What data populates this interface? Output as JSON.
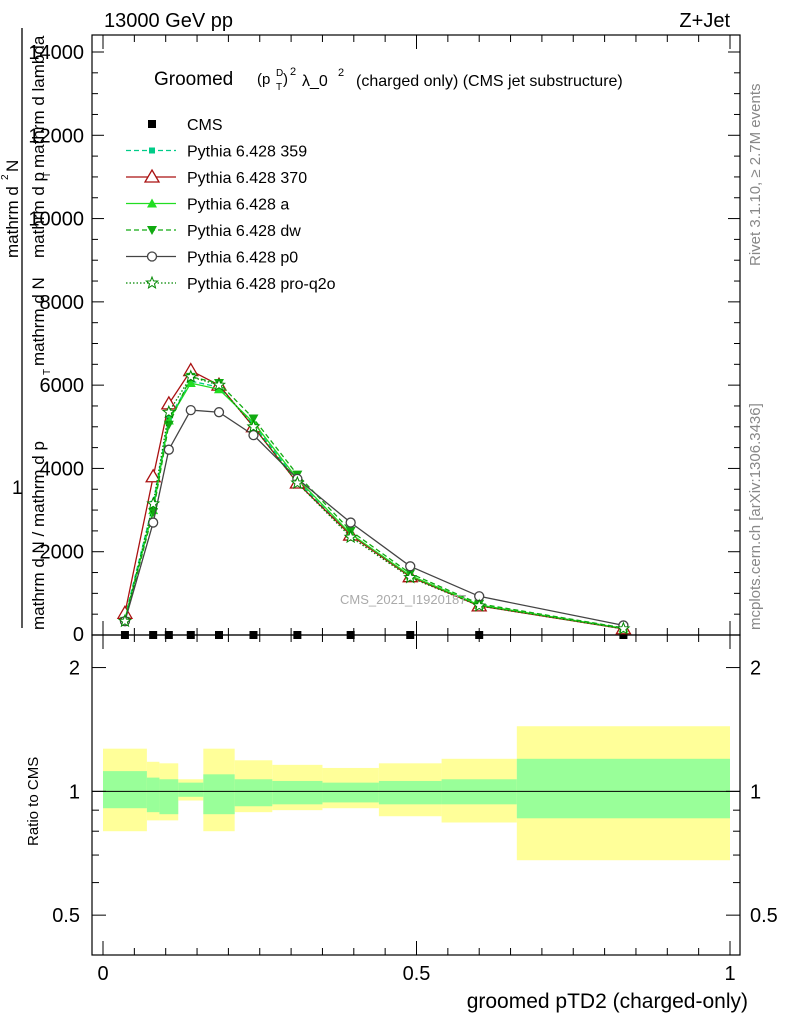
{
  "header": {
    "left": "13000 GeV pp",
    "right": "Z+Jet"
  },
  "side_text": {
    "rivet": "Rivet 3.1.10, ≥ 2.7M events",
    "mcplots": "mcplots.cern.ch [arXiv:1306.3436]"
  },
  "main_title": {
    "prefix": "Groomed",
    "p": "(p",
    "sup_d": "D",
    "sub_t": "T",
    "close": ")",
    "sq1": "2",
    "lam": "λ_0",
    "sq2": "2",
    "suffix": "(charged only) (CMS jet substructure)"
  },
  "watermark": "CMS_2021_I1920187",
  "ylabel_main": {
    "one": "1",
    "top_line1": "mathrm d",
    "top_sup": "2",
    "top_N": "N",
    "top_line2": "mathrm d p",
    "top_sub": "T",
    "top_rest": "mathrm d lambda",
    "bottom_a": "mathrm d N / mathrm d p",
    "bottom_sub": "T",
    "bottom_b": "mathrm d N"
  },
  "ylabel_ratio": "Ratio to CMS",
  "xlabel": "groomed pTD2 (charged-only)",
  "colors": {
    "cms": "#000000",
    "p359": "#00cc88",
    "p370": "#aa1111",
    "a": "#22dd22",
    "dw": "#11aa11",
    "p0": "#444444",
    "proq2o": "#008800",
    "band_inner": "#99ff99",
    "band_outer": "#ffff99"
  },
  "chart_data": [
    {
      "type": "line",
      "x": [
        0.035,
        0.08,
        0.105,
        0.14,
        0.185,
        0.24,
        0.31,
        0.395,
        0.49,
        0.6,
        0.83
      ],
      "series": [
        {
          "name": "CMS",
          "values": [
            0,
            0,
            0,
            0,
            0,
            0,
            0,
            0,
            0,
            0,
            0
          ]
        },
        {
          "name": "Pythia 6.428 359",
          "values": [
            420,
            3150,
            5200,
            6100,
            5950,
            5050,
            3700,
            2400,
            1420,
            720,
            160
          ]
        },
        {
          "name": "Pythia 6.428 370",
          "values": [
            520,
            3800,
            5550,
            6350,
            6000,
            5000,
            3650,
            2400,
            1400,
            700,
            150
          ]
        },
        {
          "name": "Pythia 6.428 a",
          "values": [
            380,
            3000,
            5150,
            6050,
            5900,
            5100,
            3750,
            2430,
            1430,
            720,
            160
          ]
        },
        {
          "name": "Pythia 6.428 dw",
          "values": [
            340,
            2950,
            5050,
            6200,
            6050,
            5200,
            3850,
            2500,
            1480,
            750,
            170
          ]
        },
        {
          "name": "Pythia 6.428 p0",
          "values": [
            330,
            2700,
            4450,
            5400,
            5350,
            4800,
            3750,
            2700,
            1650,
            930,
            230
          ]
        },
        {
          "name": "Pythia 6.428 pro-q2o",
          "values": [
            330,
            3150,
            5350,
            6200,
            6000,
            5000,
            3650,
            2350,
            1380,
            700,
            150
          ]
        }
      ],
      "xlim": [
        0,
        1
      ],
      "ylim": [
        0,
        14000
      ],
      "yticks": [
        "2000",
        "4000",
        "6000",
        "8000",
        "10000",
        "12000",
        "14000"
      ],
      "ytick_zero": "0",
      "legend": "top-left"
    },
    {
      "type": "area",
      "xlabel": "groomed pTD2 (charged-only)",
      "ylabel": "Ratio to CMS",
      "ylim": [
        0.4,
        2.4
      ],
      "log_y": true,
      "yticks": [
        "0.5",
        "1",
        "2"
      ],
      "xticks": [
        "0",
        "0.5",
        "1"
      ],
      "bins": [
        0,
        0.07,
        0.09,
        0.12,
        0.16,
        0.21,
        0.27,
        0.35,
        0.44,
        0.54,
        0.66,
        1.0
      ],
      "stat_band": [
        [
          0.91,
          1.12
        ],
        [
          0.89,
          1.08
        ],
        [
          0.88,
          1.07
        ],
        [
          0.97,
          1.05
        ],
        [
          0.88,
          1.1
        ],
        [
          0.92,
          1.07
        ],
        [
          0.93,
          1.06
        ],
        [
          0.94,
          1.05
        ],
        [
          0.93,
          1.06
        ],
        [
          0.93,
          1.07
        ],
        [
          0.86,
          1.2
        ]
      ],
      "total_band": [
        [
          0.8,
          1.27
        ],
        [
          0.85,
          1.18
        ],
        [
          0.85,
          1.17
        ],
        [
          0.95,
          1.07
        ],
        [
          0.8,
          1.27
        ],
        [
          0.89,
          1.19
        ],
        [
          0.9,
          1.16
        ],
        [
          0.91,
          1.14
        ],
        [
          0.87,
          1.17
        ],
        [
          0.84,
          1.2
        ],
        [
          0.68,
          1.44
        ]
      ],
      "reference": 1
    }
  ]
}
